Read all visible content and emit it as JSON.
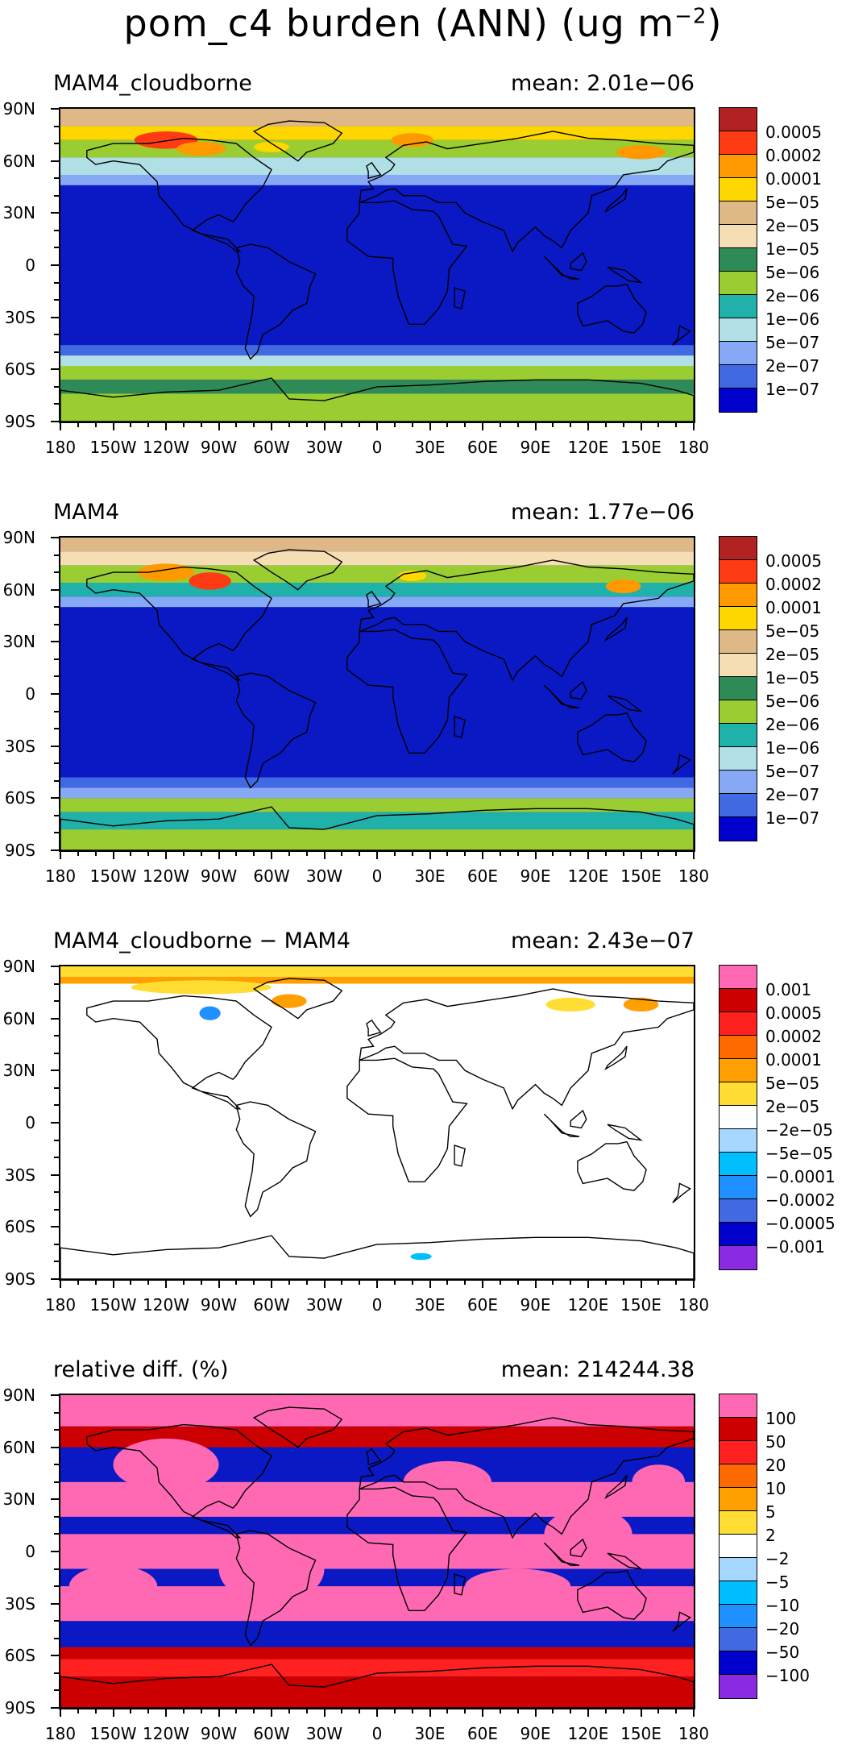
{
  "title_text": "pom_c4 burden (ANN) (ug m",
  "title_exp": "−2",
  "title_close": ")",
  "lat_labels": [
    "90N",
    "60N",
    "30N",
    "0",
    "30S",
    "60S",
    "90S"
  ],
  "lon_labels": [
    "180",
    "150W",
    "120W",
    "90W",
    "60W",
    "30W",
    "0",
    "30E",
    "60E",
    "90E",
    "120E",
    "150E",
    "180"
  ],
  "panels": [
    {
      "name": "MAM4_cloudborne",
      "mean": "mean:  2.01e−06",
      "background": "#0a19c3",
      "colorbar": {
        "colors": [
          "#b22222",
          "#ff3b14",
          "#ff9900",
          "#ffd700",
          "#deb887",
          "#f5deb3",
          "#2e8b57",
          "#9acd32",
          "#20b2aa",
          "#b0e0e6",
          "#87a9f5",
          "#4169e1",
          "#0000cd"
        ],
        "labels": [
          "0.0005",
          "0.0002",
          "0.0001",
          "5e−05",
          "2e−05",
          "1e−05",
          "5e−06",
          "2e−06",
          "1e−06",
          "5e−07",
          "2e−07",
          "1e−07"
        ]
      }
    },
    {
      "name": "MAM4",
      "mean": "mean:  1.77e−06",
      "background": "#0a19c3",
      "colorbar": {
        "colors": [
          "#b22222",
          "#ff3b14",
          "#ff9900",
          "#ffd700",
          "#deb887",
          "#f5deb3",
          "#2e8b57",
          "#9acd32",
          "#20b2aa",
          "#b0e0e6",
          "#87a9f5",
          "#4169e1",
          "#0000cd"
        ],
        "labels": [
          "0.0005",
          "0.0002",
          "0.0001",
          "5e−05",
          "2e−05",
          "1e−05",
          "5e−06",
          "2e−06",
          "1e−06",
          "5e−07",
          "2e−07",
          "1e−07"
        ]
      }
    },
    {
      "name": "MAM4_cloudborne − MAM4",
      "mean": "mean:  2.43e−07",
      "background": "#ffffff",
      "colorbar": {
        "colors": [
          "#ff69b4",
          "#cc0000",
          "#ff2020",
          "#ff6a00",
          "#ff9f00",
          "#ffdd33",
          "#ffffff",
          "#a6d8ff",
          "#00bfff",
          "#1e90ff",
          "#4169e1",
          "#0000cd",
          "#8a2be2"
        ],
        "labels": [
          "0.001",
          "0.0005",
          "0.0002",
          "0.0001",
          "5e−05",
          "2e−05",
          "−2e−05",
          "−5e−05",
          "−0.0001",
          "−0.0002",
          "−0.0005",
          "−0.001"
        ]
      }
    },
    {
      "name": "relative diff. (%)",
      "mean": "mean:  214244.38",
      "background": "#0a19c3",
      "colorbar": {
        "colors": [
          "#ff69b4",
          "#cc0000",
          "#ff2020",
          "#ff6a00",
          "#ff9f00",
          "#ffdd33",
          "#ffffff",
          "#a6d8ff",
          "#00bfff",
          "#1e90ff",
          "#4169e1",
          "#0000cd",
          "#8a2be2"
        ],
        "labels": [
          "100",
          "50",
          "20",
          "10",
          "5",
          "2",
          "−2",
          "−5",
          "−10",
          "−20",
          "−50",
          "−100"
        ]
      }
    }
  ]
}
